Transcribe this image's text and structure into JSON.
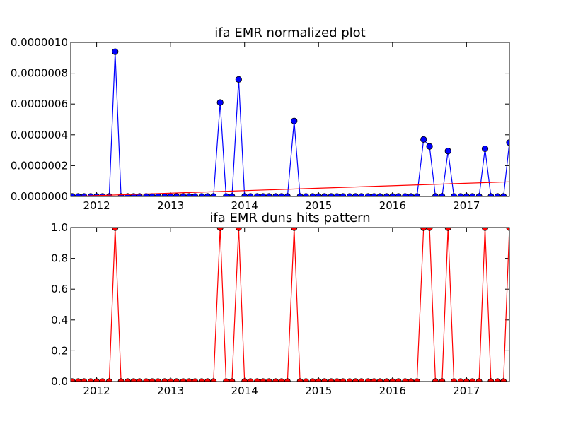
{
  "chart_data": [
    {
      "type": "line",
      "title": "ifa EMR normalized plot",
      "xlabel": "",
      "ylabel": "",
      "x_range": [
        2011.65,
        2017.58
      ],
      "x_ticks": [
        "2012",
        "2013",
        "2014",
        "2015",
        "2016",
        "2017"
      ],
      "ylim": [
        0.0,
        1e-06
      ],
      "y_ticks": [
        "0.0000000",
        "0.0000002",
        "0.0000004",
        "0.0000006",
        "0.0000008",
        "0.0000010"
      ],
      "grid": false,
      "series": [
        {
          "color": "#0000ff",
          "marker": "circle",
          "x": [
            2011.67,
            2011.75,
            2011.83,
            2011.92,
            2012.0,
            2012.08,
            2012.17,
            2012.25,
            2012.33,
            2012.42,
            2012.5,
            2012.58,
            2012.67,
            2012.75,
            2012.83,
            2012.92,
            2013.0,
            2013.08,
            2013.17,
            2013.25,
            2013.33,
            2013.42,
            2013.5,
            2013.58,
            2013.67,
            2013.75,
            2013.83,
            2013.92,
            2014.0,
            2014.08,
            2014.17,
            2014.25,
            2014.33,
            2014.42,
            2014.5,
            2014.58,
            2014.67,
            2014.75,
            2014.83,
            2014.92,
            2015.0,
            2015.08,
            2015.17,
            2015.25,
            2015.33,
            2015.42,
            2015.5,
            2015.58,
            2015.67,
            2015.75,
            2015.83,
            2015.92,
            2016.0,
            2016.08,
            2016.17,
            2016.25,
            2016.33,
            2016.42,
            2016.5,
            2016.58,
            2016.67,
            2016.75,
            2016.83,
            2016.92,
            2017.0,
            2017.08,
            2017.17,
            2017.25,
            2017.33,
            2017.42,
            2017.5,
            2017.58
          ],
          "values": [
            0,
            0,
            0,
            0,
            0,
            0,
            0,
            9.4e-07,
            0,
            0,
            0,
            0,
            0,
            0,
            0,
            0,
            0,
            0,
            0,
            0,
            0,
            0,
            0,
            0,
            6.1e-07,
            0,
            0,
            7.6e-07,
            0,
            0,
            0,
            0,
            0,
            0,
            0,
            0,
            4.9e-07,
            0,
            0,
            0,
            0,
            0,
            0,
            0,
            0,
            0,
            0,
            0,
            0,
            0,
            0,
            0,
            0,
            0,
            0,
            0,
            0,
            3.7e-07,
            3.25e-07,
            0,
            0,
            2.95e-07,
            0,
            0,
            0,
            0,
            0,
            3.1e-07,
            0,
            0,
            0,
            3.5e-07
          ]
        },
        {
          "color": "#ff0000",
          "marker": "none",
          "x": [
            2011.65,
            2017.58
          ],
          "values": [
            0.0,
            9.5e-08
          ]
        }
      ]
    },
    {
      "type": "line",
      "title": "ifa EMR duns hits pattern",
      "xlabel": "",
      "ylabel": "",
      "x_range": [
        2011.65,
        2017.58
      ],
      "x_ticks": [
        "2012",
        "2013",
        "2014",
        "2015",
        "2016",
        "2017"
      ],
      "ylim": [
        0.0,
        1.0
      ],
      "y_ticks": [
        "0.0",
        "0.2",
        "0.4",
        "0.6",
        "0.8",
        "1.0"
      ],
      "grid": false,
      "series": [
        {
          "color": "#ff0000",
          "marker": "circle",
          "x": [
            2011.67,
            2011.75,
            2011.83,
            2011.92,
            2012.0,
            2012.08,
            2012.17,
            2012.25,
            2012.33,
            2012.42,
            2012.5,
            2012.58,
            2012.67,
            2012.75,
            2012.83,
            2012.92,
            2013.0,
            2013.08,
            2013.17,
            2013.25,
            2013.33,
            2013.42,
            2013.5,
            2013.58,
            2013.67,
            2013.75,
            2013.83,
            2013.92,
            2014.0,
            2014.08,
            2014.17,
            2014.25,
            2014.33,
            2014.42,
            2014.5,
            2014.58,
            2014.67,
            2014.75,
            2014.83,
            2014.92,
            2015.0,
            2015.08,
            2015.17,
            2015.25,
            2015.33,
            2015.42,
            2015.5,
            2015.58,
            2015.67,
            2015.75,
            2015.83,
            2015.92,
            2016.0,
            2016.08,
            2016.17,
            2016.25,
            2016.33,
            2016.42,
            2016.5,
            2016.58,
            2016.67,
            2016.75,
            2016.83,
            2016.92,
            2017.0,
            2017.08,
            2017.17,
            2017.25,
            2017.33,
            2017.42,
            2017.5,
            2017.58
          ],
          "values": [
            0,
            0,
            0,
            0,
            0,
            0,
            0,
            1,
            0,
            0,
            0,
            0,
            0,
            0,
            0,
            0,
            0,
            0,
            0,
            0,
            0,
            0,
            0,
            0,
            1,
            0,
            0,
            1,
            0,
            0,
            0,
            0,
            0,
            0,
            0,
            0,
            1,
            0,
            0,
            0,
            0,
            0,
            0,
            0,
            0,
            0,
            0,
            0,
            0,
            0,
            0,
            0,
            0,
            0,
            0,
            0,
            0,
            1,
            1,
            0,
            0,
            1,
            0,
            0,
            0,
            0,
            0,
            1,
            0,
            0,
            0,
            1
          ]
        }
      ]
    }
  ]
}
